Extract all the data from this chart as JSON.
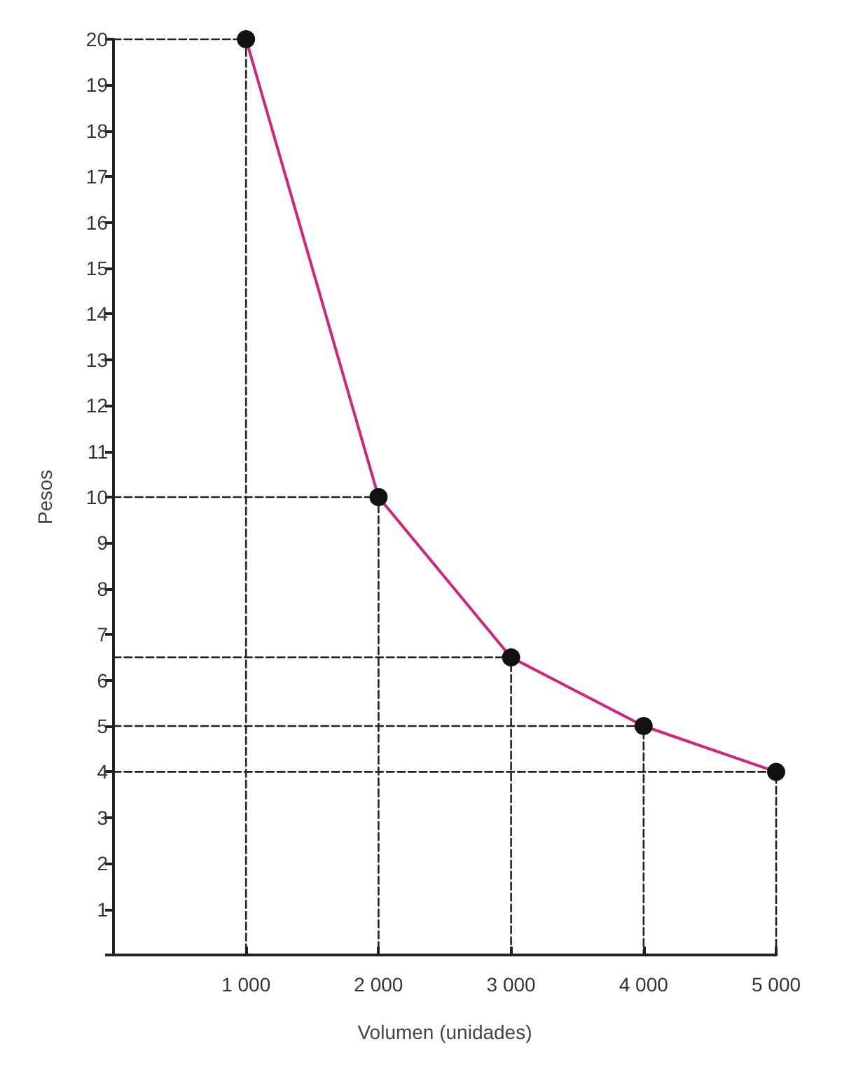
{
  "chart_data": {
    "type": "line",
    "xlabel": "Volumen (unidades)",
    "ylabel": "Pesos",
    "x": [
      1000,
      2000,
      3000,
      4000,
      5000
    ],
    "series": [
      {
        "color": "#d0247e",
        "values": [
          20,
          10,
          6.5,
          5,
          4
        ]
      },
      {
        "color": "#222222",
        "x": [
          0,
          1000,
          1000
        ],
        "values": [
          20,
          20,
          0
        ],
        "line_style": "dashed",
        "marker": "none"
      },
      {
        "color": "#222222",
        "x": [
          0,
          2000,
          2000
        ],
        "values": [
          10,
          10,
          0
        ],
        "line_style": "dashed",
        "marker": "none"
      },
      {
        "color": "#222222",
        "x": [
          0,
          3000,
          3000
        ],
        "values": [
          6.5,
          6.5,
          0
        ],
        "line_style": "dashed",
        "marker": "none"
      },
      {
        "color": "#222222",
        "x": [
          0,
          4000,
          4000
        ],
        "values": [
          5,
          5,
          0
        ],
        "line_style": "dashed",
        "marker": "none"
      },
      {
        "color": "#222222",
        "x": [
          0,
          5000,
          5000
        ],
        "values": [
          4,
          4,
          0
        ],
        "line_style": "dashed",
        "marker": "none"
      }
    ],
    "marker": "circle",
    "line_style": "solid",
    "xlim": [
      0,
      5000
    ],
    "xticks": [
      {
        "value": 0,
        "label": null
      },
      {
        "value": 1000,
        "label": "1 000"
      },
      {
        "value": 2000,
        "label": "2 000"
      },
      {
        "value": 3000,
        "label": "3 000"
      },
      {
        "value": 4000,
        "label": "4 000"
      },
      {
        "value": 5000,
        "label": "5 000"
      }
    ],
    "ylim": [
      0,
      20
    ],
    "yticks": [
      {
        "value": 0,
        "label": null
      },
      1,
      2,
      3,
      4,
      5,
      6,
      7,
      8,
      9,
      10,
      11,
      12,
      13,
      14,
      15,
      16,
      17,
      18,
      19,
      20
    ]
  }
}
